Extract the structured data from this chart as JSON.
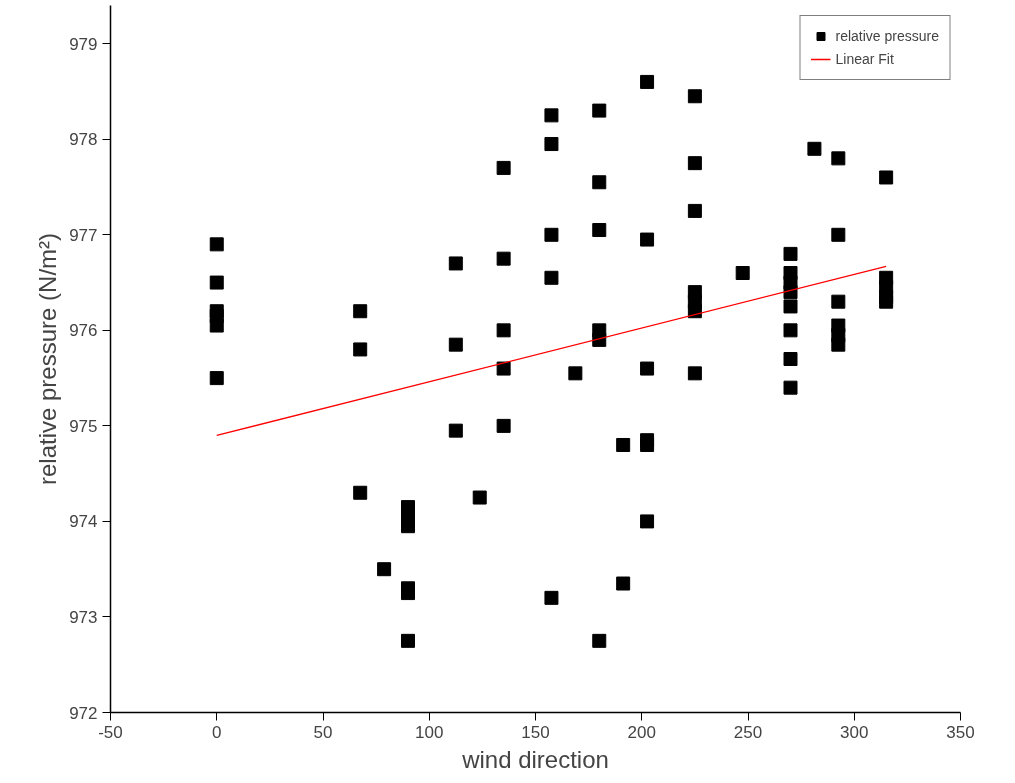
{
  "chart_data": {
    "type": "scatter",
    "xlabel": "wind direction",
    "ylabel": "relative pressure (N/m²)",
    "xlim": [
      -50,
      350
    ],
    "xticks": [
      -50,
      0,
      50,
      100,
      150,
      200,
      250,
      300,
      350
    ],
    "ylim": [
      972,
      979.4
    ],
    "yticks": [
      972,
      973,
      974,
      975,
      976,
      977,
      978,
      979
    ],
    "grid": false,
    "legend": "top right",
    "series": [
      {
        "name": "relative pressure",
        "marker": "square",
        "color": "#000000",
        "x": [
          0,
          0,
          0,
          0,
          0,
          0,
          67.5,
          67.5,
          67.5,
          78.75,
          90,
          90,
          90,
          90,
          90,
          90,
          112.5,
          112.5,
          112.5,
          123.75,
          135,
          135,
          135,
          135,
          135,
          157.5,
          157.5,
          157.5,
          157.5,
          157.5,
          168.75,
          180,
          180,
          180,
          180,
          180,
          180,
          191.25,
          191.25,
          202.5,
          202.5,
          202.5,
          202.5,
          202.5,
          202.5,
          225,
          225,
          225,
          225,
          225,
          225,
          225,
          247.5,
          270,
          270,
          270,
          270,
          270,
          270,
          270,
          270,
          281.25,
          292.5,
          292.5,
          292.5,
          292.5,
          292.5,
          292.5,
          315,
          315,
          315,
          315,
          315
        ],
        "values": [
          976.9,
          976.5,
          976.2,
          976.15,
          976.05,
          975.5,
          976.2,
          975.8,
          974.3,
          973.5,
          974.15,
          974.05,
          973.95,
          973.3,
          973.25,
          972.75,
          976.7,
          975.85,
          974.95,
          974.25,
          977.7,
          976.75,
          976.0,
          975.6,
          975.0,
          978.25,
          977.95,
          977.0,
          976.55,
          973.2,
          975.55,
          978.3,
          977.55,
          977.05,
          976.0,
          975.9,
          972.75,
          974.8,
          973.35,
          978.6,
          976.95,
          975.6,
          974.85,
          974.8,
          974.0,
          978.45,
          977.75,
          977.25,
          976.4,
          976.3,
          976.2,
          975.55,
          976.6,
          976.8,
          976.6,
          976.5,
          976.4,
          976.25,
          976.0,
          975.7,
          975.4,
          977.9,
          977.8,
          977.0,
          976.3,
          976.05,
          975.95,
          975.85,
          977.6,
          976.55,
          976.45,
          976.35,
          976.3
        ]
      },
      {
        "name": "Linear Fit",
        "type": "line",
        "marker": "none",
        "color": "#ff0000",
        "x": [
          0,
          315
        ],
        "values": [
          974.9,
          976.67
        ]
      }
    ]
  }
}
